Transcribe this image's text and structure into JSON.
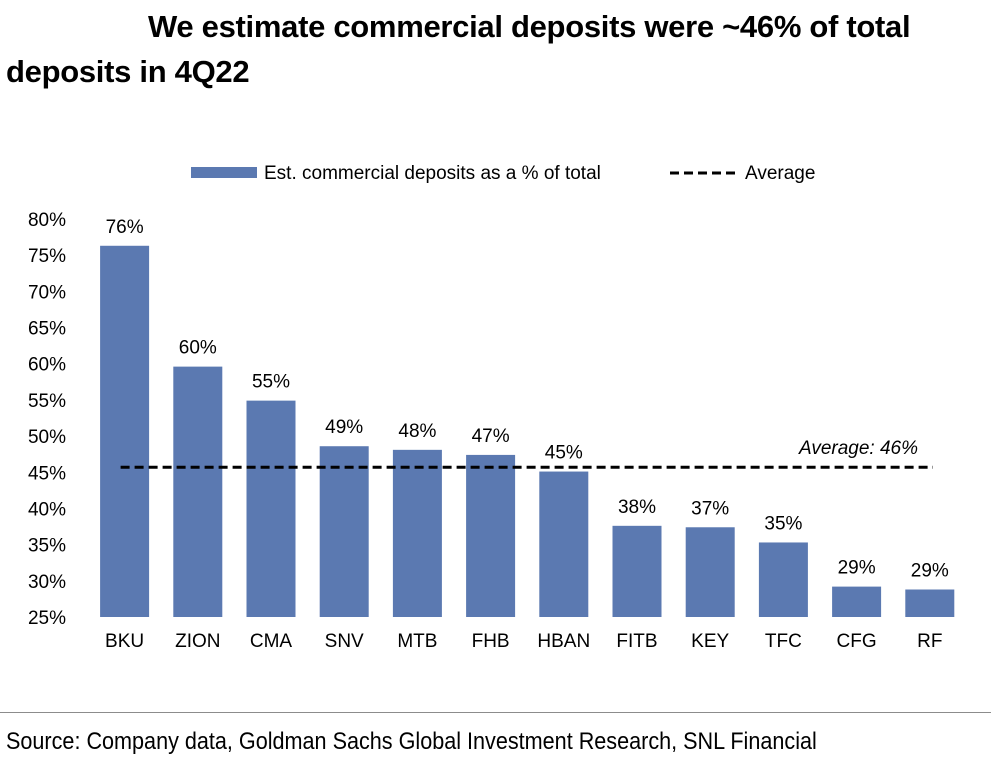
{
  "title": "We estimate commercial deposits were ~46% of total deposits in 4Q22",
  "source": "Source: Company data, Goldman Sachs Global Investment Research, SNL Financial",
  "colors": {
    "bar": "#5b79b1",
    "average_line": "#000000"
  },
  "chart_data": {
    "type": "bar",
    "categories": [
      "BKU",
      "ZION",
      "CMA",
      "SNV",
      "MTB",
      "FHB",
      "HBAN",
      "FITB",
      "KEY",
      "TFC",
      "CFG",
      "RF"
    ],
    "series": [
      {
        "name": "Est. commercial deposits as a % of total",
        "values": [
          76.3,
          59.6,
          54.9,
          48.6,
          48.1,
          47.4,
          45.1,
          37.6,
          37.4,
          35.3,
          29.2,
          28.8
        ],
        "labels": [
          "76%",
          "60%",
          "55%",
          "49%",
          "48%",
          "47%",
          "45%",
          "38%",
          "37%",
          "35%",
          "29%",
          "29%"
        ]
      }
    ],
    "average": {
      "name": "Average",
      "value": 45.7,
      "annotation": "Average: 46%"
    },
    "ylim": [
      25,
      80
    ],
    "yticks": [
      "25%",
      "30%",
      "35%",
      "40%",
      "45%",
      "50%",
      "55%",
      "60%",
      "65%",
      "70%",
      "75%",
      "80%"
    ],
    "ytick_values": [
      25,
      30,
      35,
      40,
      45,
      50,
      55,
      60,
      65,
      70,
      75,
      80
    ],
    "grid": false,
    "legend": "top-center"
  }
}
